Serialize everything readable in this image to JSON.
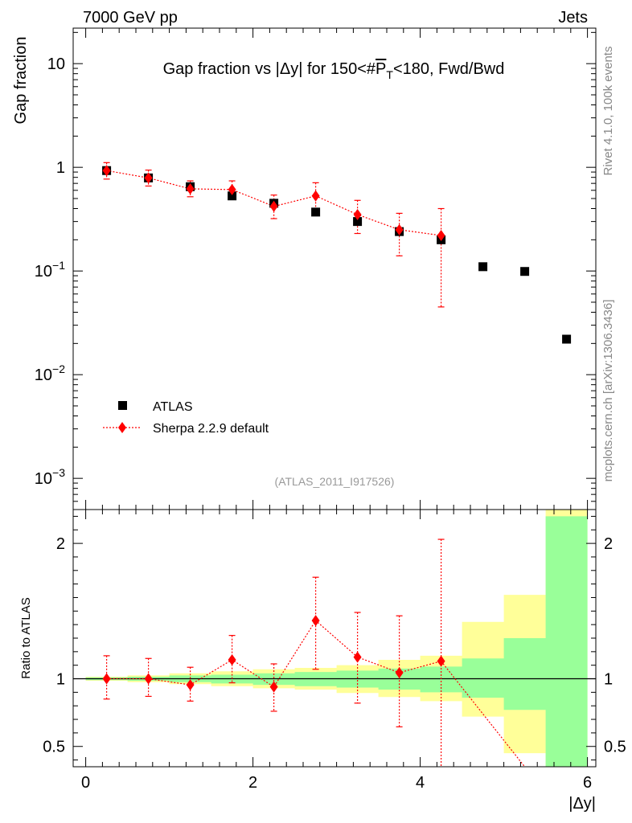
{
  "header": {
    "left": "7000 GeV pp",
    "right": "Jets"
  },
  "side_text": {
    "rivet": "Rivet 4.1.0,  100k events",
    "mcplots": "mcplots.cern.ch [arXiv:1306.3436]"
  },
  "chart_data": [
    {
      "type": "scatter",
      "panel": "main",
      "title": "Gap fraction vs |Δy| for 150<#P_T<180, Fwd/Bwd",
      "title_parts": {
        "pre": "Gap fraction vs |Δy| for 150<#",
        "p": "P",
        "sub": "T",
        "post": "<180, Fwd/Bwd"
      },
      "ylabel": "Gap fraction",
      "yscale": "log",
      "ylim": [
        0.0005,
        22
      ],
      "xlim": [
        -0.15,
        6.1
      ],
      "y_ticks": [
        {
          "value": 10,
          "mant": "10",
          "exp": ""
        },
        {
          "value": 1,
          "mant": "1",
          "exp": ""
        },
        {
          "value": 0.1,
          "mant": "10",
          "exp": "−1"
        },
        {
          "value": 0.01,
          "mant": "10",
          "exp": "−2"
        },
        {
          "value": 0.001,
          "mant": "10",
          "exp": "−3"
        }
      ],
      "analysis_label": "(ATLAS_2011_I917526)",
      "legend": [
        {
          "name": "ATLAS",
          "marker": "square",
          "color": "#000000"
        },
        {
          "name": "Sherpa 2.2.9 default",
          "marker": "diamond",
          "color": "#ff0000"
        }
      ],
      "series": [
        {
          "name": "ATLAS",
          "x": [
            0.25,
            0.75,
            1.25,
            1.75,
            2.25,
            2.75,
            3.25,
            3.75,
            4.25,
            4.75,
            5.25,
            5.75
          ],
          "y": [
            0.93,
            0.79,
            0.65,
            0.53,
            0.45,
            0.37,
            0.3,
            0.24,
            0.2,
            0.11,
            0.099,
            0.022
          ]
        },
        {
          "name": "Sherpa 2.2.9 default",
          "x": [
            0.25,
            0.75,
            1.25,
            1.75,
            2.25,
            2.75,
            3.25,
            3.75,
            4.25
          ],
          "y": [
            0.93,
            0.79,
            0.62,
            0.61,
            0.42,
            0.53,
            0.35,
            0.25,
            0.22
          ],
          "err_low": [
            0.16,
            0.13,
            0.1,
            0.1,
            0.1,
            0.13,
            0.12,
            0.11,
            0.175
          ],
          "err_high": [
            0.18,
            0.15,
            0.12,
            0.13,
            0.12,
            0.18,
            0.13,
            0.11,
            0.18
          ]
        }
      ]
    },
    {
      "type": "scatter",
      "panel": "ratio",
      "ylabel": "Ratio to ATLAS",
      "xlabel": "|Δy|",
      "ylim": [
        0.35,
        2.25
      ],
      "xlim": [
        -0.15,
        6.1
      ],
      "x_ticks": [
        0,
        2,
        4,
        6
      ],
      "y_ticks": [
        0.5,
        1,
        2
      ],
      "reference_line": 1,
      "band_edges": [
        0,
        0.5,
        1,
        1.5,
        2,
        2.5,
        3,
        3.5,
        4,
        4.5,
        5,
        5.5,
        6
      ],
      "band_inner": {
        "color": "#99ff99",
        "low": [
          0.99,
          0.985,
          0.975,
          0.965,
          0.955,
          0.945,
          0.935,
          0.92,
          0.9,
          0.86,
          0.77,
          0.35
        ],
        "high": [
          1.01,
          1.015,
          1.025,
          1.03,
          1.04,
          1.05,
          1.06,
          1.075,
          1.09,
          1.15,
          1.3,
          2.2
        ]
      },
      "band_outer": {
        "color": "#ffff99",
        "low": [
          0.985,
          0.975,
          0.96,
          0.945,
          0.93,
          0.92,
          0.895,
          0.865,
          0.835,
          0.72,
          0.45,
          0.35
        ],
        "high": [
          1.015,
          1.025,
          1.04,
          1.055,
          1.07,
          1.08,
          1.1,
          1.14,
          1.17,
          1.42,
          1.62,
          2.25
        ]
      },
      "series": [
        {
          "name": "Sherpa 2.2.9 default",
          "x": [
            0.25,
            0.75,
            1.25,
            1.75,
            2.25,
            2.75,
            3.25,
            3.75,
            4.25
          ],
          "y": [
            1.0,
            1.0,
            0.955,
            1.14,
            0.94,
            1.43,
            1.16,
            1.045,
            1.13
          ],
          "err_low": [
            0.15,
            0.13,
            0.12,
            0.17,
            0.18,
            0.36,
            0.34,
            0.4,
            0.8
          ],
          "err_high": [
            0.17,
            0.15,
            0.13,
            0.18,
            0.17,
            0.32,
            0.33,
            0.42,
            0.9
          ],
          "continuation": {
            "x": [
              4.25,
              5.25
            ],
            "y": [
              1.13,
              0.35
            ]
          }
        }
      ]
    }
  ]
}
